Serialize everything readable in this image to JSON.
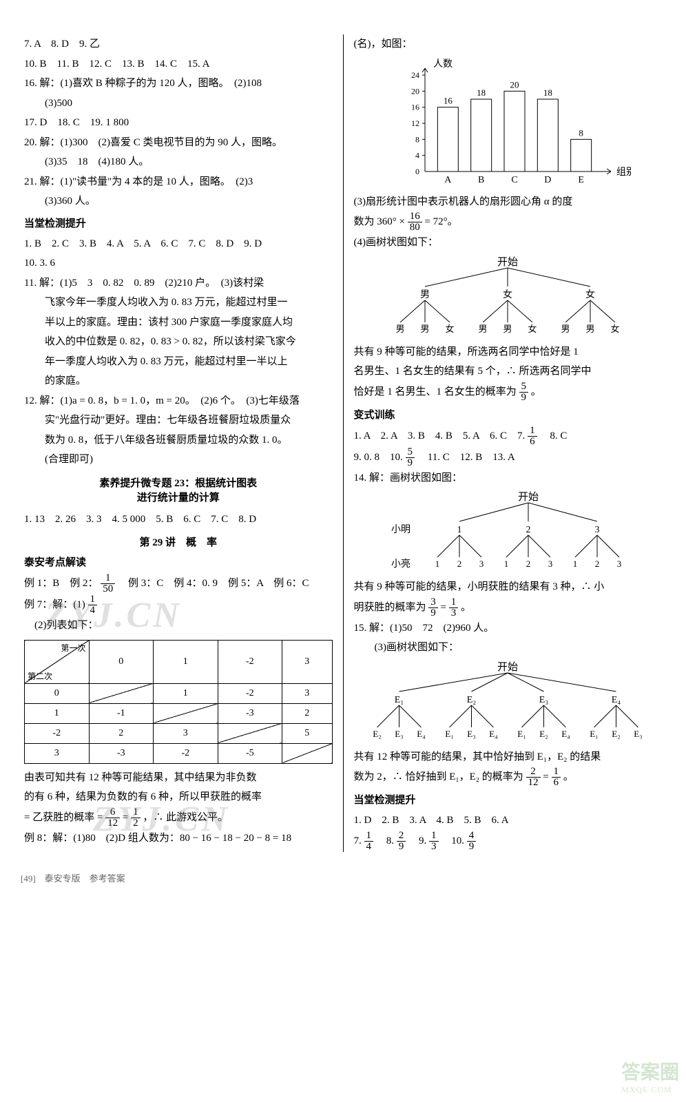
{
  "left_column": {
    "lines_top": [
      "7. A　8. D　9. 乙",
      "10. B　11. B　12. C　13. B　14. C　15. A",
      "16. 解：(1)喜欢 B 种粽子的为 120 人，图略。　(2)108",
      "　　(3)500",
      "17. D　18. C　19. 1 800",
      "20. 解：(1)300　(2)喜爱 C 类电视节目的为 90 人，图略。",
      "　　(3)35　18　(4)180 人。",
      "21. 解：(1)\"读书量\"为 4 本的是 10 人，图略。　(2)3",
      "　　(3)360 人。"
    ],
    "h1": "当堂检测提升",
    "lines_mid": [
      "1. B　2. C　3. B　4. A　5. A　6. C　7. C　8. D　9. D",
      "10. 3. 6",
      "11. 解：(1)5　3　0. 82　0. 89　(2)210 户。　(3)该村梁",
      "　　飞家今年一季度人均收入为 0. 83 万元，能超过村里一",
      "　　半以上的家庭。理由：该村 300 户家庭一季度家庭人均",
      "　　收入的中位数是 0. 82，0. 83 > 0. 82，所以该村梁飞家今",
      "　　年一季度人均收入为 0. 83 万元，能超过村里一半以上",
      "　　的家庭。",
      "12. 解：(1)a = 0. 8，b = 1. 0，m = 20。　(2)6 个。　(3)七年级落",
      "　　实\"光盘行动\"更好。理由：七年级各班餐厨垃圾质量众",
      "　　数为 0. 8，低于八年级各班餐厨质量垃圾的众数 1. 0。",
      "　　(合理即可)"
    ],
    "h2": "素养提升微专题 23：根据统计图表\n进行统计量的计算",
    "lines_sub23": "1. 13　2. 26　3. 3　4. 5 000　5. B　6. C　7. C　8. D",
    "h3": "第 29 讲　概　率",
    "h4": "泰安考点解读",
    "ex_line1_a": "例 1：B　例 2：",
    "ex_line1_frac_n": "1",
    "ex_line1_frac_d": "50",
    "ex_line1_b": "　例 3：C　例 4：0. 9　例 5：A　例 6：C",
    "ex7_label": "例 7：解：(1) ",
    "ex7_frac_n": "1",
    "ex7_frac_d": "4",
    "ex7_2": "　(2)列表如下：",
    "watermark1": "ZYJ.CN",
    "table": {
      "corner_top": "第一次",
      "corner_bot": "第二次",
      "cols": [
        "0",
        "1",
        "-2",
        "3"
      ],
      "rows": [
        {
          "h": "0",
          "cells": [
            "",
            "1",
            "-2",
            "3"
          ]
        },
        {
          "h": "1",
          "cells": [
            "-1",
            "",
            "-3",
            "2"
          ]
        },
        {
          "h": "-2",
          "cells": [
            "2",
            "3",
            "",
            "5"
          ]
        },
        {
          "h": "3",
          "cells": [
            "-3",
            "-2",
            "-5",
            ""
          ]
        }
      ]
    },
    "post_table_a": "由表可知共有 12 种等可能结果，其中结果为非负数",
    "post_table_b": "的有 6 种，结果为负数的有 6 种，所以甲获胜的概率",
    "post_table_c_a": "= 乙获胜的概率 = ",
    "frac_6_12_n": "6",
    "frac_6_12_d": "12",
    "eq": " = ",
    "frac_1_2_n": "1",
    "frac_1_2_d": "2",
    "post_table_c_b": "，∴ 此游戏公平。",
    "watermark2": "ZYJ.CN",
    "ex8": "例 8：解：(1)80　(2)D 组人数为：80 − 16 − 18 − 20 − 8 = 18"
  },
  "right_column": {
    "top_line": "(名)，如图：",
    "bar_chart": {
      "ylabel": "人数",
      "xlabel": "组别",
      "categories": [
        "A",
        "B",
        "C",
        "D",
        "E"
      ],
      "values": [
        16,
        18,
        20,
        18,
        8
      ],
      "y_ticks": [
        4,
        8,
        12,
        16,
        20,
        24
      ],
      "bar_color": "#ffffff",
      "bar_border": "#000000",
      "axis_color": "#000000"
    },
    "line3_a": "(3)扇形统计图中表示机器人的扇形圆心角 α 的度",
    "line3_b_a": "数为 360° × ",
    "frac_16_80_n": "16",
    "frac_16_80_d": "80",
    "line3_b_b": " = 72°。",
    "line4": "(4)画树状图如下：",
    "tree1": {
      "root": "开始",
      "level1": [
        "男",
        "女",
        "女"
      ],
      "level2": [
        [
          "男",
          "男",
          "女"
        ],
        [
          "男",
          "男",
          "女"
        ],
        [
          "男",
          "男",
          "女"
        ]
      ]
    },
    "tree1_text_a": "共有 9 种等可能的结果，所选两名同学中恰好是 1",
    "tree1_text_b": "名男生、1 名女生的结果有 5 个，∴ 所选两名同学中",
    "tree1_text_c_a": "恰好是 1 名男生、1 名女生的概率为 ",
    "frac_5_9_n": "5",
    "frac_5_9_d": "9",
    "tree1_text_c_b": "。",
    "h_bs": "变式训练",
    "bs_line1_a": "1. A　2. A　3. B　4. B　5. A　6. C　7. ",
    "frac_1_6_n": "1",
    "frac_1_6_d": "6",
    "bs_line1_b": "　8. C",
    "bs_line2_a": "9. 0. 8　10. ",
    "bs_frac_5_9_n": "5",
    "bs_frac_5_9_d": "9",
    "bs_line2_b": "　11. C　12. B　13. A",
    "q14": "14. 解：画树状图如图：",
    "tree2": {
      "root": "开始",
      "row_labels": [
        "小明",
        "小亮"
      ],
      "level1": [
        "1",
        "2",
        "3"
      ],
      "level2": [
        [
          "1",
          "2",
          "3"
        ],
        [
          "1",
          "2",
          "3"
        ],
        [
          "1",
          "2",
          "3"
        ]
      ]
    },
    "q14_text_a": "共有 9 种等可能的结果，小明获胜的结果有 3 种，∴ 小",
    "q14_text_b_a": "明获胜的概率为 ",
    "frac_3_9_n": "3",
    "frac_3_9_d": "9",
    "q14_eq": " = ",
    "frac_1_3_n": "1",
    "frac_1_3_d": "3",
    "q14_text_b_b": "。",
    "q15_a": "15. 解：(1)50　72　(2)960 人。",
    "q15_b": "　　(3)画树状图如下：",
    "tree3": {
      "root": "开始",
      "level1": [
        "E₁",
        "E₂",
        "E₃",
        "E₄"
      ],
      "level2": [
        [
          "E₂",
          "E₃",
          "E₄"
        ],
        [
          "E₁",
          "E₃",
          "E₄"
        ],
        [
          "E₁",
          "E₂",
          "E₄"
        ],
        [
          "E₁",
          "E₂",
          "E₃"
        ]
      ]
    },
    "q15_text_a": "共有 12 种等可能的结果，其中恰好抽到 E₁，E₂ 的结果",
    "q15_text_b_a": "数为 2，∴ 恰好抽到 E₁，E₂ 的概率为 ",
    "frac_2_12_n": "2",
    "frac_2_12_d": "12",
    "q15_eq": " = ",
    "q15_frac_1_6_n": "1",
    "q15_frac_1_6_d": "6",
    "q15_text_b_b": "。",
    "h_dt": "当堂检测提升",
    "dt_line1": "1. D　2. B　3. A　4. B　5. B　6. A",
    "dt_line2_a": "7. ",
    "dt_f1_n": "1",
    "dt_f1_d": "4",
    "dt_line2_b": "　8. ",
    "dt_f2_n": "2",
    "dt_f2_d": "9",
    "dt_line2_c": "　9. ",
    "dt_f3_n": "1",
    "dt_f3_d": "3",
    "dt_line2_d": "　10. ",
    "dt_f4_n": "4",
    "dt_f4_d": "9"
  },
  "footer": "[49]　泰安专版　参考答案",
  "stamp": {
    "l1": "答案圈",
    "l2": "MXQE.COM"
  }
}
